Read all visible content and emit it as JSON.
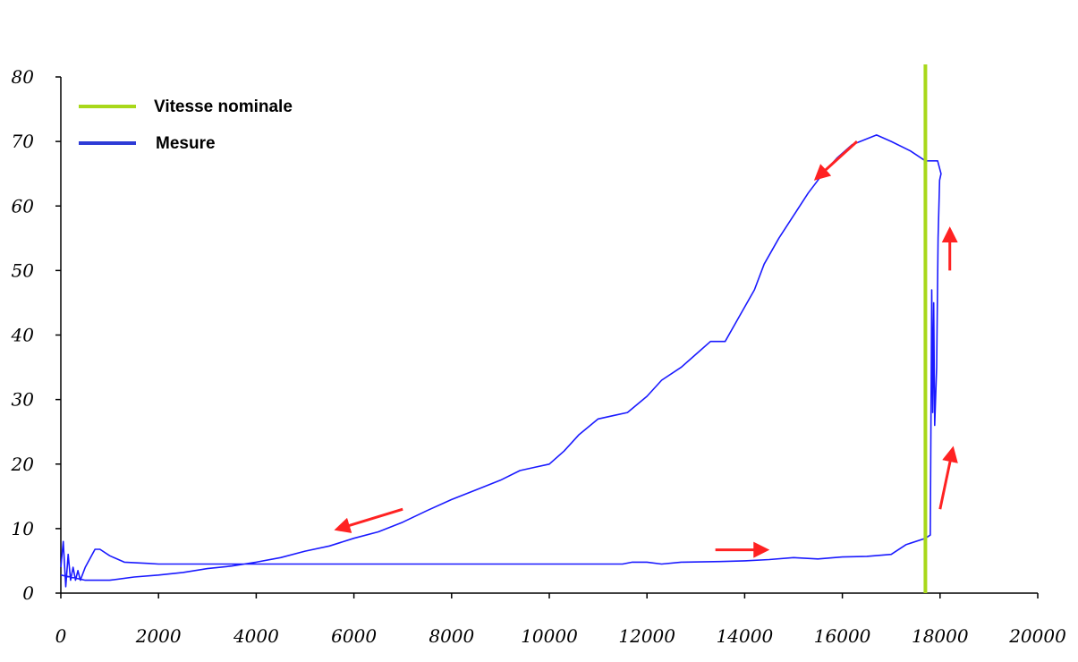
{
  "chart_data": {
    "type": "line",
    "title": "",
    "xlabel": "",
    "ylabel": "",
    "xlim": [
      0,
      20000
    ],
    "ylim": [
      0,
      80
    ],
    "x_ticks": [
      "0",
      "2000",
      "4000",
      "6000",
      "8000",
      "10000",
      "12000",
      "14000",
      "16000",
      "18000",
      "20000"
    ],
    "y_ticks": [
      "0",
      "10",
      "20",
      "30",
      "40",
      "50",
      "60",
      "70",
      "80"
    ],
    "grid": false,
    "legend_position": "top-left",
    "legend": [
      {
        "label": "Vitesse nominale",
        "color": "#a8d81a"
      },
      {
        "label": "Mesure",
        "color": "#2d3bd6"
      }
    ],
    "vertical_line": {
      "name": "Vitesse nominale",
      "x": 17700,
      "color": "#a8d81a"
    },
    "series": [
      {
        "name": "Mesure",
        "color": "#1a1aff",
        "points": [
          [
            0,
            4
          ],
          [
            50,
            8
          ],
          [
            100,
            1
          ],
          [
            150,
            6
          ],
          [
            200,
            2
          ],
          [
            250,
            4
          ],
          [
            300,
            2
          ],
          [
            350,
            3.5
          ],
          [
            400,
            2
          ],
          [
            500,
            4
          ],
          [
            700,
            6.8
          ],
          [
            800,
            6.8
          ],
          [
            1000,
            5.8
          ],
          [
            1300,
            4.8
          ],
          [
            1800,
            4.6
          ],
          [
            2000,
            4.5
          ],
          [
            4000,
            4.5
          ],
          [
            6000,
            4.5
          ],
          [
            8000,
            4.5
          ],
          [
            10000,
            4.5
          ],
          [
            11500,
            4.5
          ],
          [
            11700,
            4.8
          ],
          [
            12000,
            4.8
          ],
          [
            12300,
            4.5
          ],
          [
            12700,
            4.8
          ],
          [
            13500,
            4.9
          ],
          [
            14000,
            5
          ],
          [
            14500,
            5.2
          ],
          [
            15000,
            5.5
          ],
          [
            15500,
            5.3
          ],
          [
            16000,
            5.6
          ],
          [
            16500,
            5.7
          ],
          [
            17000,
            6
          ],
          [
            17300,
            7.5
          ],
          [
            17700,
            8.5
          ],
          [
            17800,
            9
          ],
          [
            17830,
            47
          ],
          [
            17850,
            28
          ],
          [
            17870,
            45
          ],
          [
            17890,
            26
          ],
          [
            17930,
            35
          ],
          [
            17960,
            55
          ],
          [
            17990,
            64
          ],
          [
            18020,
            65
          ],
          [
            17950,
            67
          ],
          [
            17700,
            67
          ],
          [
            17400,
            68.5
          ],
          [
            17000,
            70
          ],
          [
            16700,
            71
          ],
          [
            16200,
            69.5
          ],
          [
            15900,
            67.5
          ],
          [
            15600,
            65
          ],
          [
            15300,
            62
          ],
          [
            15000,
            58.5
          ],
          [
            14700,
            55
          ],
          [
            14400,
            51
          ],
          [
            14200,
            47
          ],
          [
            13900,
            43
          ],
          [
            13600,
            39
          ],
          [
            13300,
            39
          ],
          [
            13000,
            37
          ],
          [
            12700,
            35
          ],
          [
            12300,
            33
          ],
          [
            12000,
            30.5
          ],
          [
            11600,
            28
          ],
          [
            11300,
            27.5
          ],
          [
            11000,
            27
          ],
          [
            10600,
            24.5
          ],
          [
            10300,
            22
          ],
          [
            10000,
            20
          ],
          [
            9700,
            19.5
          ],
          [
            9400,
            19
          ],
          [
            9000,
            17.5
          ],
          [
            8500,
            16
          ],
          [
            8000,
            14.5
          ],
          [
            7500,
            12.8
          ],
          [
            7000,
            11
          ],
          [
            6500,
            9.5
          ],
          [
            6000,
            8.5
          ],
          [
            5500,
            7.3
          ],
          [
            5000,
            6.5
          ],
          [
            4500,
            5.5
          ],
          [
            4000,
            4.8
          ],
          [
            3500,
            4.2
          ],
          [
            3000,
            3.8
          ],
          [
            2500,
            3.2
          ],
          [
            2000,
            2.8
          ],
          [
            1500,
            2.5
          ],
          [
            1000,
            2
          ],
          [
            500,
            2
          ],
          [
            200,
            2.5
          ],
          [
            0,
            2.8
          ]
        ]
      }
    ],
    "annotations": [
      {
        "type": "arrow",
        "from": [
          16300,
          70
        ],
        "to": [
          15500,
          64.5
        ],
        "color": "#ff2222"
      },
      {
        "type": "arrow",
        "from": [
          7000,
          13
        ],
        "to": [
          5700,
          10
        ],
        "color": "#ff2222"
      },
      {
        "type": "arrow",
        "from": [
          13400,
          6.7
        ],
        "to": [
          14400,
          6.7
        ],
        "color": "#ff2222"
      },
      {
        "type": "arrow",
        "from": [
          18200,
          50
        ],
        "to": [
          18200,
          56
        ],
        "color": "#ff2222"
      },
      {
        "type": "arrow",
        "from": [
          18000,
          13
        ],
        "to": [
          18250,
          22
        ],
        "color": "#ff2222"
      }
    ]
  }
}
